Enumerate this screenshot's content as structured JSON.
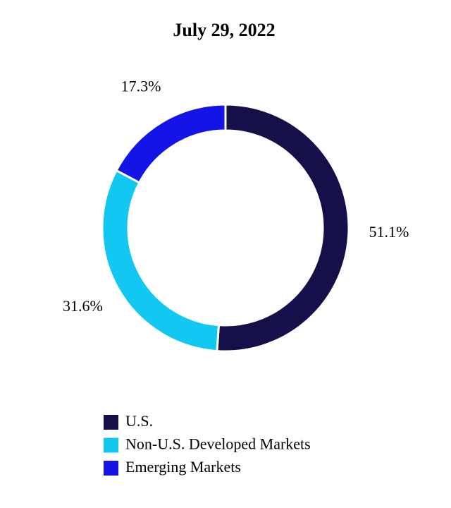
{
  "chart_data": {
    "type": "donut",
    "title": "July 29, 2022",
    "categories": [
      "U.S.",
      "Non-U.S. Developed Markets",
      "Emerging Markets"
    ],
    "values": [
      51.1,
      31.6,
      17.3
    ],
    "value_labels": [
      "51.1%",
      "31.6%",
      "17.3%"
    ],
    "colors": [
      "#16104a",
      "#13c8f0",
      "#1414e6"
    ],
    "legend": "bottom"
  }
}
